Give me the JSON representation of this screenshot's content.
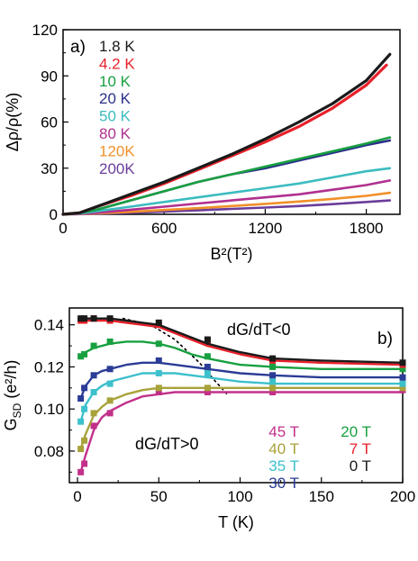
{
  "chart_data": [
    {
      "type": "line",
      "panel_label": "a)",
      "xlabel": "B²(T²)",
      "ylabel": "Δρ/ρ(%)",
      "xlim": [
        0,
        2000
      ],
      "ylim": [
        0,
        120
      ],
      "x_ticks": [
        0,
        600,
        1200,
        1800
      ],
      "y_ticks": [
        0,
        30,
        60,
        90,
        120
      ],
      "grid": false,
      "legend_position": "top-left",
      "series": [
        {
          "name": "1.8 K",
          "color": "#1a1a1a",
          "x": [
            0,
            100,
            200,
            400,
            600,
            800,
            1000,
            1200,
            1400,
            1600,
            1800,
            1940
          ],
          "y": [
            0,
            1,
            5,
            13,
            21,
            30,
            39,
            49,
            60,
            72,
            87,
            104
          ]
        },
        {
          "name": "4.2 K",
          "color": "#e8202a",
          "x": [
            0,
            100,
            200,
            400,
            600,
            800,
            1000,
            1200,
            1400,
            1600,
            1800,
            1920
          ],
          "y": [
            0,
            1,
            5,
            12,
            20,
            29,
            38,
            47,
            57,
            69,
            84,
            97
          ]
        },
        {
          "name": "10  K",
          "color": "#18a040",
          "x": [
            0,
            100,
            200,
            400,
            600,
            800,
            1000,
            1200,
            1400,
            1600,
            1800,
            1940
          ],
          "y": [
            0,
            1,
            3,
            9,
            15,
            21,
            26,
            31,
            36,
            41,
            46,
            50
          ]
        },
        {
          "name": "20  K",
          "color": "#2a2f8a",
          "x": [
            0,
            100,
            200,
            400,
            600,
            800,
            1000,
            1200,
            1400,
            1600,
            1800,
            1940
          ],
          "y": [
            0,
            1,
            3,
            9,
            15,
            21,
            26,
            30,
            35,
            40,
            45,
            48
          ]
        },
        {
          "name": "50  K",
          "color": "#3cbcc0",
          "x": [
            0,
            100,
            200,
            400,
            600,
            800,
            1000,
            1200,
            1400,
            1600,
            1800,
            1940
          ],
          "y": [
            0,
            0.5,
            2,
            5,
            8,
            11,
            14,
            17,
            20,
            24,
            28,
            30
          ]
        },
        {
          "name": "80  K",
          "color": "#b0308f",
          "x": [
            0,
            100,
            200,
            400,
            600,
            800,
            1000,
            1200,
            1400,
            1600,
            1800,
            1940
          ],
          "y": [
            0,
            0.3,
            1,
            3,
            5,
            7,
            9,
            11,
            13,
            16,
            19,
            22
          ]
        },
        {
          "name": "120K",
          "color": "#f0902a",
          "x": [
            0,
            100,
            200,
            400,
            600,
            800,
            1000,
            1200,
            1400,
            1600,
            1800,
            1940
          ],
          "y": [
            0,
            0.2,
            0.6,
            1.6,
            2.8,
            4,
            5.4,
            6.8,
            8.3,
            10,
            12,
            14
          ]
        },
        {
          "name": "200K",
          "color": "#6a3d9a",
          "x": [
            0,
            100,
            200,
            400,
            600,
            800,
            1000,
            1200,
            1400,
            1600,
            1800,
            1940
          ],
          "y": [
            0,
            0.1,
            0.4,
            1,
            1.8,
            2.6,
            3.5,
            4.4,
            5.4,
            6.6,
            8,
            9
          ]
        }
      ]
    },
    {
      "type": "line",
      "panel_label": "b)",
      "xlabel": "T (K)",
      "ylabel": "G_SD (e²/h)",
      "xlim": [
        -5,
        200
      ],
      "ylim": [
        0.065,
        0.148
      ],
      "x_ticks": [
        0,
        50,
        100,
        150,
        200
      ],
      "y_ticks": [
        0.08,
        0.1,
        0.12,
        0.14
      ],
      "grid": false,
      "legend_position": "bottom-right",
      "annotations": [
        "dG/dT<0",
        "dG/dT>0"
      ],
      "boundary_curve": {
        "x": [
          28,
          45,
          60,
          75,
          85,
          92
        ],
        "y": [
          0.143,
          0.14,
          0.133,
          0.122,
          0.113,
          0.107
        ]
      },
      "series": [
        {
          "name": "45 T",
          "color": "#c2308a",
          "x": [
            2,
            4.2,
            10,
            20,
            50,
            80,
            120,
            200
          ],
          "y": [
            0.07,
            0.074,
            0.092,
            0.098,
            0.108,
            0.108,
            0.108,
            0.109
          ],
          "fit_x": [
            2,
            5,
            10,
            15,
            20,
            30,
            40,
            50,
            60,
            70,
            80,
            100,
            120,
            150,
            200
          ],
          "fit_y": [
            0.07,
            0.078,
            0.09,
            0.096,
            0.099,
            0.103,
            0.106,
            0.107,
            0.108,
            0.108,
            0.108,
            0.108,
            0.108,
            0.108,
            0.108
          ]
        },
        {
          "name": "40 T",
          "color": "#a8a23a",
          "x": [
            2,
            4.2,
            10,
            20,
            50,
            80,
            120,
            200
          ],
          "y": [
            0.081,
            0.085,
            0.098,
            0.104,
            0.11,
            0.11,
            0.11,
            0.11
          ],
          "fit_x": [
            2,
            5,
            10,
            15,
            20,
            30,
            40,
            50,
            60,
            70,
            80,
            100,
            120,
            150,
            200
          ],
          "fit_y": [
            0.081,
            0.088,
            0.097,
            0.101,
            0.104,
            0.107,
            0.109,
            0.11,
            0.11,
            0.11,
            0.11,
            0.11,
            0.11,
            0.11,
            0.11
          ]
        },
        {
          "name": "35 T",
          "color": "#3cc0cc",
          "x": [
            2,
            4.2,
            10,
            20,
            50,
            80,
            120,
            200
          ],
          "y": [
            0.094,
            0.1,
            0.108,
            0.112,
            0.117,
            0.117,
            0.113,
            0.112
          ],
          "fit_x": [
            2,
            5,
            10,
            15,
            20,
            30,
            40,
            50,
            60,
            70,
            80,
            100,
            120,
            150,
            200
          ],
          "fit_y": [
            0.094,
            0.102,
            0.108,
            0.111,
            0.113,
            0.115,
            0.117,
            0.117,
            0.117,
            0.116,
            0.115,
            0.113,
            0.112,
            0.112,
            0.112
          ]
        },
        {
          "name": "30 T",
          "color": "#2a3c96",
          "x": [
            2,
            4.2,
            10,
            20,
            50,
            80,
            120,
            200
          ],
          "y": [
            0.105,
            0.11,
            0.116,
            0.119,
            0.123,
            0.12,
            0.116,
            0.115
          ],
          "fit_x": [
            2,
            5,
            10,
            15,
            20,
            30,
            40,
            50,
            60,
            70,
            80,
            100,
            120,
            150,
            200
          ],
          "fit_y": [
            0.105,
            0.111,
            0.116,
            0.118,
            0.119,
            0.121,
            0.122,
            0.122,
            0.121,
            0.12,
            0.119,
            0.117,
            0.116,
            0.115,
            0.115
          ]
        },
        {
          "name": "20 T",
          "color": "#18a040",
          "x": [
            2,
            4.2,
            10,
            20,
            50,
            80,
            120,
            200
          ],
          "y": [
            0.125,
            0.126,
            0.13,
            0.132,
            0.131,
            0.125,
            0.12,
            0.119
          ],
          "fit_x": [
            2,
            5,
            10,
            15,
            20,
            30,
            40,
            50,
            60,
            70,
            80,
            100,
            120,
            150,
            200
          ],
          "fit_y": [
            0.125,
            0.127,
            0.129,
            0.13,
            0.131,
            0.132,
            0.132,
            0.131,
            0.129,
            0.126,
            0.124,
            0.121,
            0.12,
            0.119,
            0.119
          ]
        },
        {
          "name": "7 T",
          "color": "#e8202a",
          "x": [
            2,
            4.2,
            10,
            20,
            50,
            80,
            120,
            200
          ],
          "y": [
            0.142,
            0.142,
            0.143,
            0.142,
            0.14,
            0.132,
            0.123,
            0.121
          ],
          "fit_x": [
            2,
            5,
            10,
            15,
            20,
            30,
            40,
            50,
            60,
            70,
            80,
            100,
            120,
            150,
            200
          ],
          "fit_y": [
            0.142,
            0.142,
            0.142,
            0.142,
            0.142,
            0.141,
            0.14,
            0.139,
            0.136,
            0.133,
            0.13,
            0.126,
            0.123,
            0.122,
            0.121
          ]
        },
        {
          "name": "0 T",
          "color": "#1a1a1a",
          "x": [
            2,
            4.2,
            10,
            20,
            50,
            80,
            120,
            200
          ],
          "y": [
            0.143,
            0.143,
            0.143,
            0.143,
            0.141,
            0.133,
            0.124,
            0.122
          ],
          "fit_x": [
            2,
            5,
            10,
            15,
            20,
            30,
            40,
            50,
            60,
            70,
            80,
            100,
            120,
            150,
            200
          ],
          "fit_y": [
            0.143,
            0.143,
            0.143,
            0.143,
            0.143,
            0.142,
            0.141,
            0.14,
            0.137,
            0.134,
            0.131,
            0.127,
            0.124,
            0.123,
            0.122
          ]
        }
      ]
    }
  ]
}
